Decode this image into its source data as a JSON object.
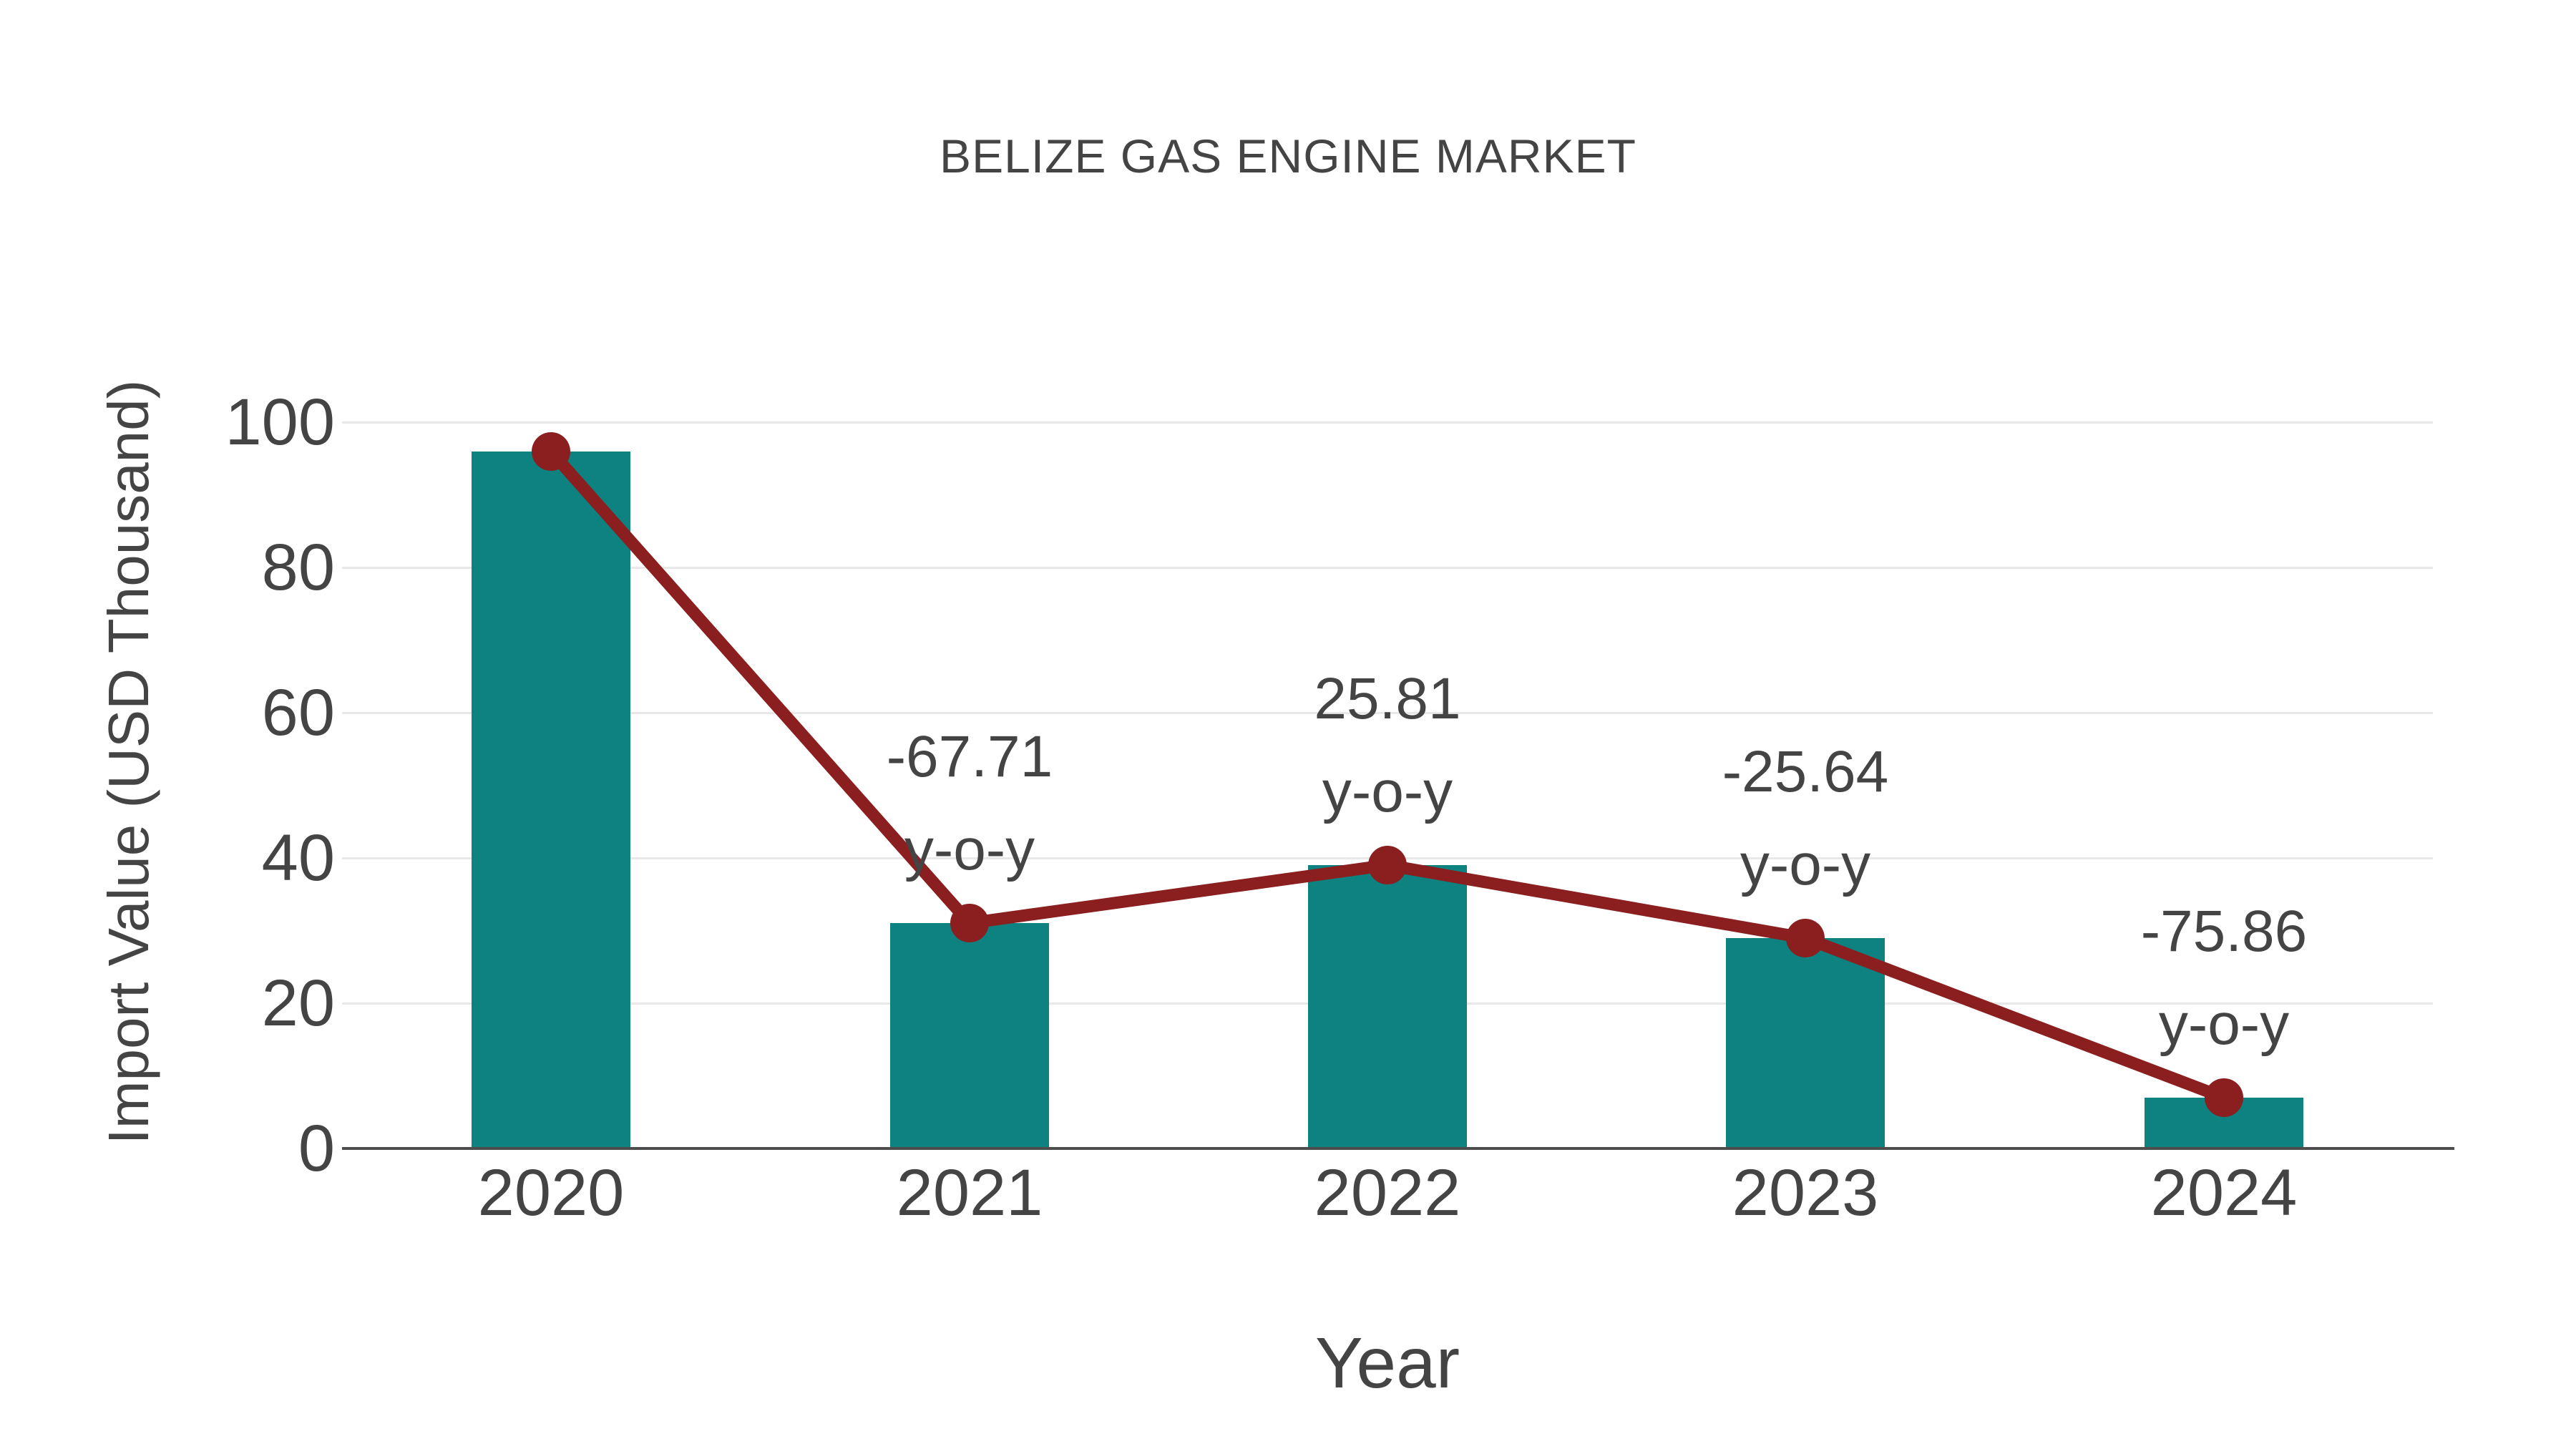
{
  "chart_data": {
    "type": "bar",
    "title": "BELIZE GAS ENGINE MARKET",
    "xlabel": "Year",
    "ylabel": "Import Value (USD Thousand)",
    "categories": [
      "2020",
      "2021",
      "2022",
      "2023",
      "2024"
    ],
    "series": [
      {
        "name": "Import Value (USD Thousand)",
        "type": "bar",
        "values": [
          96,
          31,
          39,
          29,
          7
        ]
      },
      {
        "name": "y-o-y change marker line",
        "type": "line",
        "values": [
          96,
          31,
          39,
          29,
          7
        ]
      }
    ],
    "annotations": [
      {
        "category": "2021",
        "lines": [
          "-67.71",
          "y-o-y"
        ]
      },
      {
        "category": "2022",
        "lines": [
          "25.81",
          "y-o-y"
        ]
      },
      {
        "category": "2023",
        "lines": [
          "-25.64",
          "y-o-y"
        ]
      },
      {
        "category": "2024",
        "lines": [
          "-75.86",
          "y-o-y"
        ]
      }
    ],
    "yticks": [
      0,
      20,
      40,
      60,
      80,
      100
    ],
    "ylim": [
      0,
      100
    ],
    "grid": true,
    "legend": "none",
    "colors": {
      "bar": "#0d8280",
      "line": "#8b1e1e",
      "marker": "#8b1e1e",
      "text": "#444444",
      "grid": "#e8e8e8",
      "axis": "#4d4d4d",
      "background": "#ffffff"
    }
  }
}
